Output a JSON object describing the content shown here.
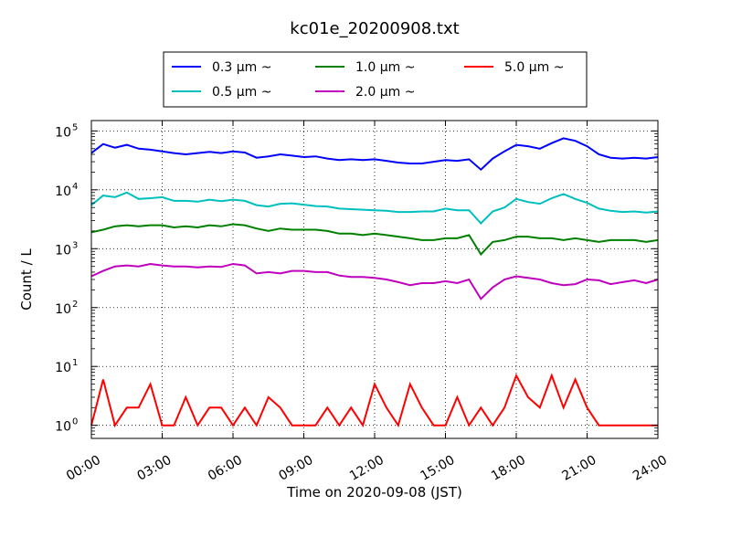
{
  "chart_data": {
    "type": "line",
    "title": "kc01e_20200908.txt",
    "xlabel": "Time on 2020-09-08 (JST)",
    "ylabel": "Count / L",
    "x_tick_labels": [
      "00:00",
      "03:00",
      "06:00",
      "09:00",
      "12:00",
      "15:00",
      "18:00",
      "21:00",
      "24:00"
    ],
    "xlim_hours": [
      0,
      24
    ],
    "y_scale": "log",
    "ylim": [
      0.6,
      150000
    ],
    "y_ticks": [
      {
        "value": 1,
        "base": "10",
        "exp": "0"
      },
      {
        "value": 10,
        "base": "10",
        "exp": "1"
      },
      {
        "value": 100,
        "base": "10",
        "exp": "2"
      },
      {
        "value": 1000,
        "base": "10",
        "exp": "3"
      },
      {
        "value": 10000,
        "base": "10",
        "exp": "4"
      },
      {
        "value": 100000,
        "base": "10",
        "exp": "5"
      }
    ],
    "grid": true,
    "legend_position": "top-center",
    "series": [
      {
        "name": "0.3 μm  ~",
        "color": "#0000ff",
        "x_hours": [
          0,
          0.5,
          1,
          1.5,
          2,
          2.5,
          3,
          3.5,
          4,
          4.5,
          5,
          5.5,
          6,
          6.5,
          7,
          7.5,
          8,
          8.5,
          9,
          9.5,
          10,
          10.5,
          11,
          11.5,
          12,
          12.5,
          13,
          13.5,
          14,
          14.5,
          15,
          15.5,
          16,
          16.5,
          17,
          17.5,
          18,
          18.5,
          19,
          19.5,
          20,
          20.5,
          21,
          21.5,
          22,
          22.5,
          23,
          23.5,
          24
        ],
        "values": [
          42000,
          60000,
          52000,
          58000,
          50000,
          48000,
          45000,
          42000,
          40000,
          42000,
          44000,
          42000,
          45000,
          43000,
          35000,
          37000,
          40000,
          38000,
          36000,
          37000,
          34000,
          32000,
          33000,
          32000,
          33000,
          31000,
          29000,
          28000,
          28000,
          30000,
          32000,
          31000,
          33000,
          22000,
          34000,
          45000,
          58000,
          55000,
          50000,
          62000,
          75000,
          68000,
          55000,
          40000,
          35000,
          34000,
          35000,
          34000,
          36000
        ]
      },
      {
        "name": "0.5 μm  ~",
        "color": "#00bfbf",
        "x_hours": [
          0,
          0.5,
          1,
          1.5,
          2,
          2.5,
          3,
          3.5,
          4,
          4.5,
          5,
          5.5,
          6,
          6.5,
          7,
          7.5,
          8,
          8.5,
          9,
          9.5,
          10,
          10.5,
          11,
          11.5,
          12,
          12.5,
          13,
          13.5,
          14,
          14.5,
          15,
          15.5,
          16,
          16.5,
          17,
          17.5,
          18,
          18.5,
          19,
          19.5,
          20,
          20.5,
          21,
          21.5,
          22,
          22.5,
          23,
          23.5,
          24
        ],
        "values": [
          5500,
          8000,
          7500,
          9000,
          7000,
          7200,
          7500,
          6500,
          6500,
          6300,
          6800,
          6400,
          6800,
          6500,
          5500,
          5200,
          5800,
          5900,
          5600,
          5300,
          5200,
          4800,
          4700,
          4600,
          4500,
          4400,
          4200,
          4200,
          4300,
          4300,
          4800,
          4500,
          4500,
          2700,
          4300,
          5000,
          7000,
          6200,
          5800,
          7200,
          8500,
          7000,
          6000,
          4800,
          4400,
          4200,
          4300,
          4100,
          4300
        ]
      },
      {
        "name": "1.0 μm  ~",
        "color": "#008000",
        "x_hours": [
          0,
          0.5,
          1,
          1.5,
          2,
          2.5,
          3,
          3.5,
          4,
          4.5,
          5,
          5.5,
          6,
          6.5,
          7,
          7.5,
          8,
          8.5,
          9,
          9.5,
          10,
          10.5,
          11,
          11.5,
          12,
          12.5,
          13,
          13.5,
          14,
          14.5,
          15,
          15.5,
          16,
          16.5,
          17,
          17.5,
          18,
          18.5,
          19,
          19.5,
          20,
          20.5,
          21,
          21.5,
          22,
          22.5,
          23,
          23.5,
          24
        ],
        "values": [
          1900,
          2100,
          2400,
          2500,
          2400,
          2500,
          2500,
          2300,
          2400,
          2300,
          2500,
          2400,
          2600,
          2500,
          2200,
          2000,
          2200,
          2100,
          2100,
          2100,
          2000,
          1800,
          1800,
          1700,
          1800,
          1700,
          1600,
          1500,
          1400,
          1400,
          1500,
          1500,
          1700,
          800,
          1300,
          1400,
          1600,
          1600,
          1500,
          1500,
          1400,
          1500,
          1400,
          1300,
          1400,
          1400,
          1400,
          1300,
          1400
        ]
      },
      {
        "name": "2.0 μm  ~",
        "color": "#bf00bf",
        "x_hours": [
          0,
          0.5,
          1,
          1.5,
          2,
          2.5,
          3,
          3.5,
          4,
          4.5,
          5,
          5.5,
          6,
          6.5,
          7,
          7.5,
          8,
          8.5,
          9,
          9.5,
          10,
          10.5,
          11,
          11.5,
          12,
          12.5,
          13,
          13.5,
          14,
          14.5,
          15,
          15.5,
          16,
          16.5,
          17,
          17.5,
          18,
          18.5,
          19,
          19.5,
          20,
          20.5,
          21,
          21.5,
          22,
          22.5,
          23,
          23.5,
          24
        ],
        "values": [
          340,
          420,
          500,
          520,
          500,
          550,
          520,
          500,
          500,
          480,
          500,
          490,
          550,
          520,
          380,
          400,
          380,
          420,
          420,
          400,
          400,
          350,
          330,
          330,
          320,
          300,
          270,
          240,
          260,
          260,
          280,
          260,
          300,
          140,
          220,
          300,
          340,
          320,
          300,
          260,
          240,
          250,
          300,
          290,
          250,
          270,
          290,
          260,
          300
        ]
      },
      {
        "name": "5.0 μm  ~",
        "color": "#ff0000",
        "x_hours": [
          0,
          0.5,
          1,
          1.5,
          2,
          2.5,
          3,
          3.5,
          4,
          4.5,
          5,
          5.5,
          6,
          6.5,
          7,
          7.5,
          8,
          8.5,
          9,
          9.5,
          10,
          10.5,
          11,
          11.5,
          12,
          12.5,
          13,
          13.5,
          14,
          14.5,
          15,
          15.5,
          16,
          16.5,
          17,
          17.5,
          18,
          18.5,
          19,
          19.5,
          20,
          20.5,
          21,
          21.5,
          22,
          22.5,
          23,
          23.5,
          24
        ],
        "values": [
          1,
          6,
          1,
          2,
          2,
          5,
          1,
          1,
          3,
          1,
          2,
          2,
          1,
          2,
          1,
          3,
          2,
          1,
          1,
          1,
          2,
          1,
          2,
          1,
          5,
          2,
          1,
          5,
          2,
          1,
          1,
          3,
          1,
          2,
          1,
          2,
          7,
          3,
          2,
          7,
          2,
          6,
          2,
          1,
          1,
          1,
          1,
          1,
          1
        ]
      }
    ]
  }
}
